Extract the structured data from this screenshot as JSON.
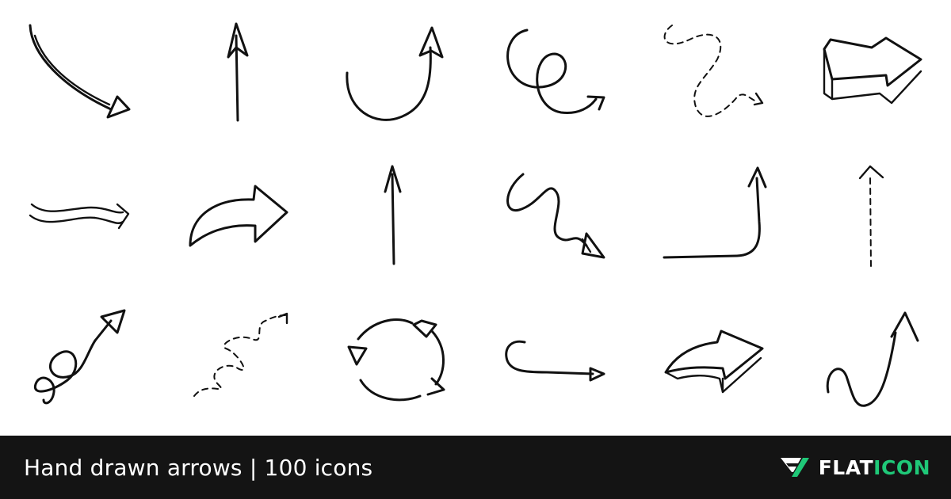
{
  "footer": {
    "title": "Hand drawn arrows | 100 icons",
    "brand_part1": "FLAT",
    "brand_part2": "ICON"
  },
  "colors": {
    "background": "#ffffff",
    "footer_bg": "#141414",
    "footer_text": "#ffffff",
    "brand_accent": "#1fc878",
    "stroke": "#111111"
  },
  "icons": [
    "curved-arrow-down-right-icon",
    "arrow-up-icon",
    "u-turn-arrow-up-icon",
    "loop-arrow-right-icon",
    "dashed-wavy-arrow-icon",
    "3d-arrow-right-icon",
    "double-wave-arrow-right-icon",
    "curved-outline-arrow-right-icon",
    "arrow-up-thin-icon",
    "zigzag-arrow-down-right-icon",
    "corner-arrow-up-icon",
    "dashed-arrow-up-icon",
    "spiral-arrow-up-right-icon",
    "dashed-spiral-arrow-icon",
    "circular-refresh-arrows-icon",
    "hook-arrow-right-icon",
    "3d-curved-arrow-right-icon",
    "wave-arrow-up-icon"
  ]
}
